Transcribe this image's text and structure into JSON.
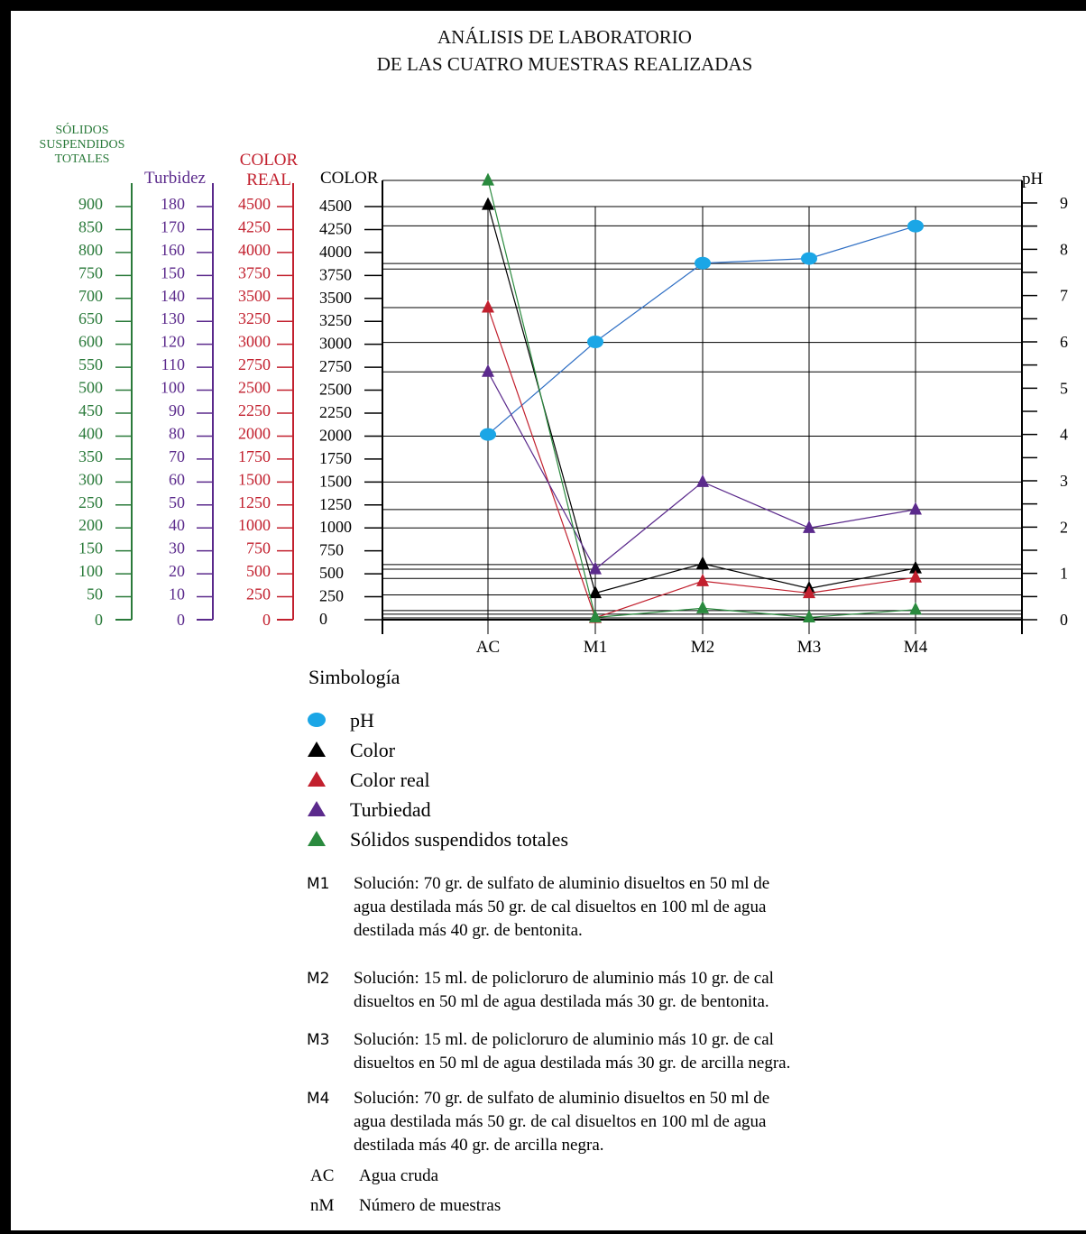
{
  "chart_data": {
    "type": "line",
    "title": [
      "ANÁLISIS DE LABORATORIO",
      "DE LAS CUATRO MUESTRAS REALIZADAS"
    ],
    "categories": [
      "AC",
      "M1",
      "M2",
      "M3",
      "M4"
    ],
    "axes": {
      "color": {
        "label": "COLOR",
        "ticks": [
          "0",
          "250",
          "500",
          "750",
          "1000",
          "1250",
          "1500",
          "1750",
          "2000",
          "2250",
          "2500",
          "2750",
          "3000",
          "3250",
          "3500",
          "3750",
          "4000",
          "4250",
          "4500"
        ],
        "range": [
          0,
          4500
        ]
      },
      "color_real": {
        "label": [
          "COLOR",
          "REAL"
        ],
        "ticks": [
          "0",
          "250",
          "500",
          "750",
          "1000",
          "1250",
          "1500",
          "1750",
          "2000",
          "2250",
          "2500",
          "2750",
          "3000",
          "3250",
          "3500",
          "3750",
          "4000",
          "4250",
          "4500"
        ],
        "range": [
          0,
          4500
        ]
      },
      "turbidez": {
        "label": "Turbidez",
        "ticks": [
          "0",
          "10",
          "20",
          "30",
          "40",
          "50",
          "60",
          "70",
          "80",
          "90",
          "100",
          "110",
          "120",
          "130",
          "140",
          "150",
          "160",
          "170",
          "180"
        ],
        "range": [
          0,
          180
        ]
      },
      "solidos": {
        "label": [
          "SÓLIDOS",
          "SUSPENDIDOS",
          "TOTALES"
        ],
        "ticks": [
          "0",
          "50",
          "100",
          "150",
          "200",
          "250",
          "300",
          "350",
          "400",
          "450",
          "500",
          "550",
          "600",
          "650",
          "700",
          "750",
          "800",
          "850",
          "900"
        ],
        "range": [
          0,
          900
        ]
      },
      "ph": {
        "label": "pH",
        "ticks": [
          "0",
          "1",
          "2",
          "3",
          "4",
          "5",
          "6",
          "7",
          "8",
          "9"
        ],
        "range": [
          0,
          9
        ]
      }
    },
    "series": [
      {
        "name": "pH",
        "key": "ph",
        "marker": "circle",
        "color": "#1BA6E6",
        "line": "#2F6FC4",
        "values": [
          4.0,
          6.0,
          7.7,
          7.8,
          8.5
        ]
      },
      {
        "name": "Color",
        "key": "color",
        "marker": "triangle",
        "color": "#000000",
        "line": "#000000",
        "values": [
          4520,
          290,
          610,
          340,
          560
        ]
      },
      {
        "name": "Color real",
        "key": "color_real",
        "marker": "triangle",
        "color": "#C2202E",
        "line": "#C2202E",
        "values": [
          3400,
          20,
          420,
          290,
          460
        ]
      },
      {
        "name": "Turbiedad",
        "key": "turbidez",
        "marker": "triangle",
        "color": "#5B2A8C",
        "line": "#5B2A8C",
        "values": [
          108,
          22,
          60,
          40,
          48
        ]
      },
      {
        "name": "Sólidos suspendidos totales",
        "key": "solidos",
        "marker": "triangle",
        "color": "#2A8A3E",
        "line": "#2A8A3E",
        "values": [
          957,
          5,
          25,
          5,
          22
        ]
      }
    ]
  },
  "legend": {
    "title": "Simbología",
    "items": [
      "pH",
      "Color",
      "Color real",
      "Turbiedad",
      "Sólidos suspendidos totales"
    ]
  },
  "notes": [
    {
      "code": "M1",
      "lines": [
        "Solución: 70 gr. de sulfato de aluminio disueltos en 50 ml de",
        "agua destilada más 50 gr. de cal disueltos en 100 ml de agua",
        "destilada más 40 gr. de bentonita."
      ]
    },
    {
      "code": "M2",
      "lines": [
        "Solución: 15 ml. de policloruro de aluminio más 10 gr. de cal",
        "disueltos en 50 ml de agua destilada más 30 gr. de bentonita."
      ]
    },
    {
      "code": "M3",
      "lines": [
        "Solución: 15 ml. de policloruro de aluminio más 10 gr. de cal",
        "disueltos en 50 ml de agua destilada más 30 gr. de arcilla negra."
      ]
    },
    {
      "code": "M4",
      "lines": [
        "Solución: 70 gr. de sulfato de aluminio disueltos en 50 ml de",
        "agua destilada más 50 gr. de cal disueltos en 100 ml de agua",
        "destilada más 40 gr. de arcilla negra."
      ]
    },
    {
      "code": "AC",
      "lines": [
        "Agua cruda"
      ]
    },
    {
      "code": "nM",
      "lines": [
        "Número de muestras"
      ]
    }
  ]
}
